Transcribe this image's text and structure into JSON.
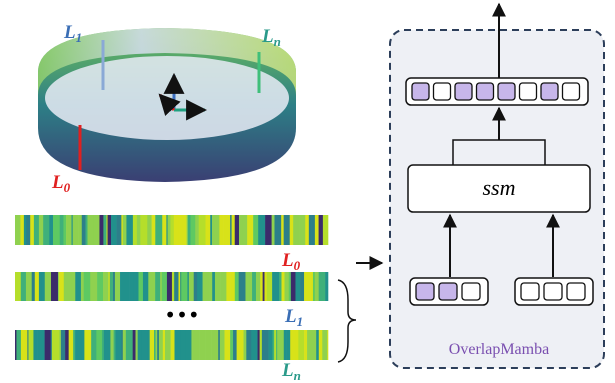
{
  "ring_labels": [
    {
      "main": "L",
      "sub": "1"
    },
    {
      "main": "L",
      "sub": "n"
    },
    {
      "main": "L",
      "sub": "0"
    }
  ],
  "strip_labels": [
    {
      "main": "L",
      "sub": "0"
    },
    {
      "main": "L",
      "sub": "1"
    },
    {
      "main": "L",
      "sub": "n"
    }
  ],
  "ellipsis": "•••",
  "block": {
    "module": "ssm",
    "name": "OverlapMamba"
  }
}
